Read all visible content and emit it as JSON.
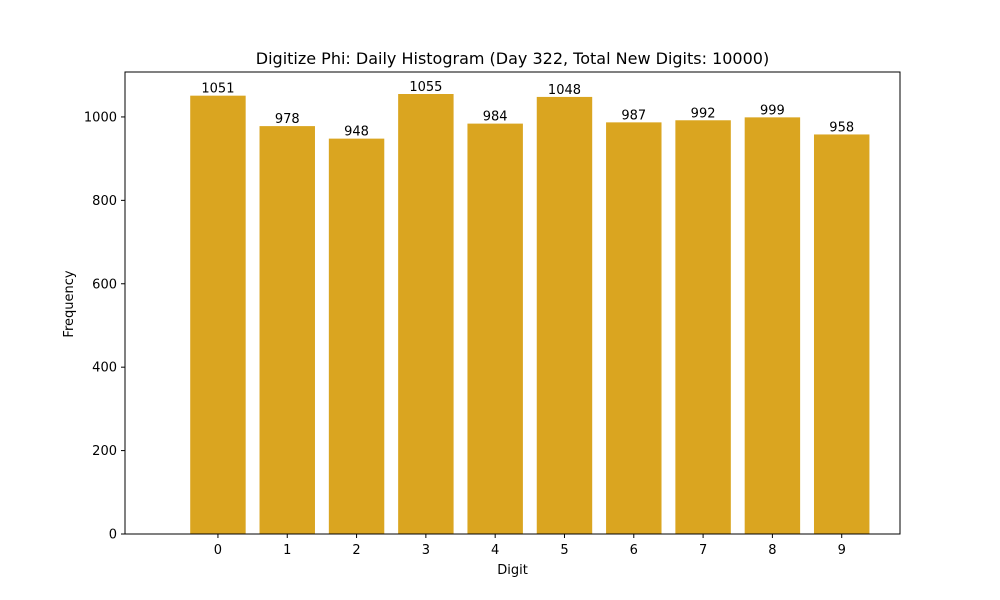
{
  "chart_data": {
    "type": "bar",
    "title": "Digitize Phi: Daily Histogram (Day 322, Total New Digits: 10000)",
    "xlabel": "Digit",
    "ylabel": "Frequency",
    "categories": [
      "0",
      "1",
      "2",
      "3",
      "4",
      "5",
      "6",
      "7",
      "8",
      "9"
    ],
    "values": [
      1051,
      978,
      948,
      1055,
      984,
      1048,
      987,
      992,
      999,
      958
    ],
    "ylim": [
      0,
      1107.75
    ],
    "yticks": [
      0,
      200,
      400,
      600,
      800,
      1000
    ],
    "grid": false,
    "bar_color": "#DAA520"
  }
}
